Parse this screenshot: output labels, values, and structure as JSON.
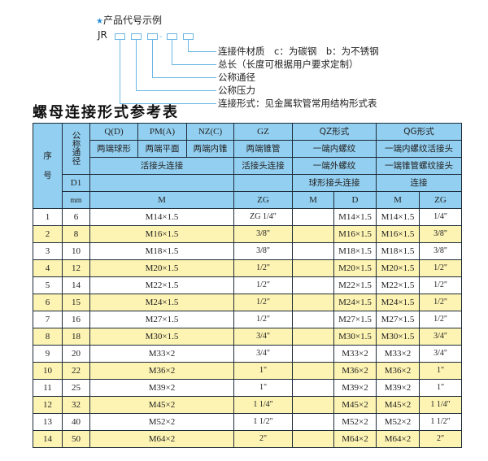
{
  "code_example": {
    "title": "产品代号示例",
    "prefix": "JR",
    "separator": "-",
    "labels": [
      "连接件材质　c：为碳钢　b：为不锈钢",
      "总长（长度可根据用户要求定制）",
      "公称通径",
      "公称压力",
      "连接形式：见金属软管常用结构形式表"
    ]
  },
  "table_title": "螺母连接形式参考表",
  "header": {
    "seq": "序\n\n号",
    "nominal": "公称通径",
    "qd": "Q(D)",
    "pm": "PM(A)",
    "nz": "NZ(C)",
    "gz": "GZ",
    "qz": "QZ形式",
    "qg": "QG形式",
    "qd_desc": "两端球形",
    "pm_desc": "两端平面",
    "nz_desc": "两端内锥",
    "gz_desc": "两端锥管",
    "qz_desc": "一端内螺纹",
    "qg_desc": "一端内螺纹活接头",
    "union": "活接头连接",
    "gz_union": "活接头连接",
    "qz_desc2": "一端外螺纹",
    "qg_desc2": "一端锥管螺纹接头",
    "d1": "D1",
    "qz_desc3": "球形接头连接",
    "qg_desc3": "连接",
    "mm": "mm",
    "m": "M",
    "zg": "ZG",
    "qz_m": "M",
    "qz_d": "D",
    "qg_m": "M",
    "qg_zg": "ZG"
  },
  "rows": [
    {
      "no": "1",
      "dn": "6",
      "m": "M14×1.5",
      "zg": "ZG 1/4\"",
      "qz_m": "",
      "qz_d": "M14×1.5",
      "qg_m": "M14×1.5",
      "qg_zg": "1/4\""
    },
    {
      "no": "2",
      "dn": "8",
      "m": "M16×1.5",
      "zg": "3/8\"",
      "qz_m": "",
      "qz_d": "M16×1.5",
      "qg_m": "M16×1.5",
      "qg_zg": "3/8\""
    },
    {
      "no": "3",
      "dn": "10",
      "m": "M18×1.5",
      "zg": "3/8\"",
      "qz_m": "",
      "qz_d": "M18×1.5",
      "qg_m": "M18×1.5",
      "qg_zg": "3/8\""
    },
    {
      "no": "4",
      "dn": "12",
      "m": "M20×1.5",
      "zg": "1/2\"",
      "qz_m": "",
      "qz_d": "M20×1.5",
      "qg_m": "M20×1.5",
      "qg_zg": "1/2\""
    },
    {
      "no": "5",
      "dn": "14",
      "m": "M22×1.5",
      "zg": "1/2\"",
      "qz_m": "",
      "qz_d": "M22×1.5",
      "qg_m": "M22×1.5",
      "qg_zg": "1/2\""
    },
    {
      "no": "6",
      "dn": "15",
      "m": "M24×1.5",
      "zg": "1/2\"",
      "qz_m": "",
      "qz_d": "M24×1.5",
      "qg_m": "M24×1.5",
      "qg_zg": "1/2\""
    },
    {
      "no": "7",
      "dn": "16",
      "m": "M27×1.5",
      "zg": "1/2\"",
      "qz_m": "",
      "qz_d": "M27×1.5",
      "qg_m": "M27×1.5",
      "qg_zg": "1/2\""
    },
    {
      "no": "8",
      "dn": "18",
      "m": "M30×1.5",
      "zg": "3/4\"",
      "qz_m": "",
      "qz_d": "M30×1.5",
      "qg_m": "M30×1.5",
      "qg_zg": "3/4\""
    },
    {
      "no": "9",
      "dn": "20",
      "m": "M33×2",
      "zg": "3/4\"",
      "qz_m": "",
      "qz_d": "M33×2",
      "qg_m": "M33×2",
      "qg_zg": "3/4\""
    },
    {
      "no": "10",
      "dn": "22",
      "m": "M36×2",
      "zg": "1\"",
      "qz_m": "",
      "qz_d": "M36×2",
      "qg_m": "M36×2",
      "qg_zg": "1\""
    },
    {
      "no": "11",
      "dn": "25",
      "m": "M39×2",
      "zg": "1\"",
      "qz_m": "",
      "qz_d": "M39×2",
      "qg_m": "M39×2",
      "qg_zg": "1\""
    },
    {
      "no": "12",
      "dn": "32",
      "m": "M45×2",
      "zg": "1 1/4\"",
      "qz_m": "",
      "qz_d": "M45×2",
      "qg_m": "M45×2",
      "qg_zg": "1 1/4\""
    },
    {
      "no": "13",
      "dn": "40",
      "m": "M52×2",
      "zg": "1 1/2\"",
      "qz_m": "",
      "qz_d": "M52×2",
      "qg_m": "M52×2",
      "qg_zg": "1 1/2\""
    },
    {
      "no": "14",
      "dn": "50",
      "m": "M64×2",
      "zg": "2\"",
      "qz_m": "",
      "qz_d": "M64×2",
      "qg_m": "M64×2",
      "qg_zg": "2\""
    }
  ],
  "colors": {
    "header_bg": "#93cff0",
    "alt_row_bg": "#fdf3b3",
    "border": "#1d2b38",
    "accent": "#2a8fd8"
  }
}
